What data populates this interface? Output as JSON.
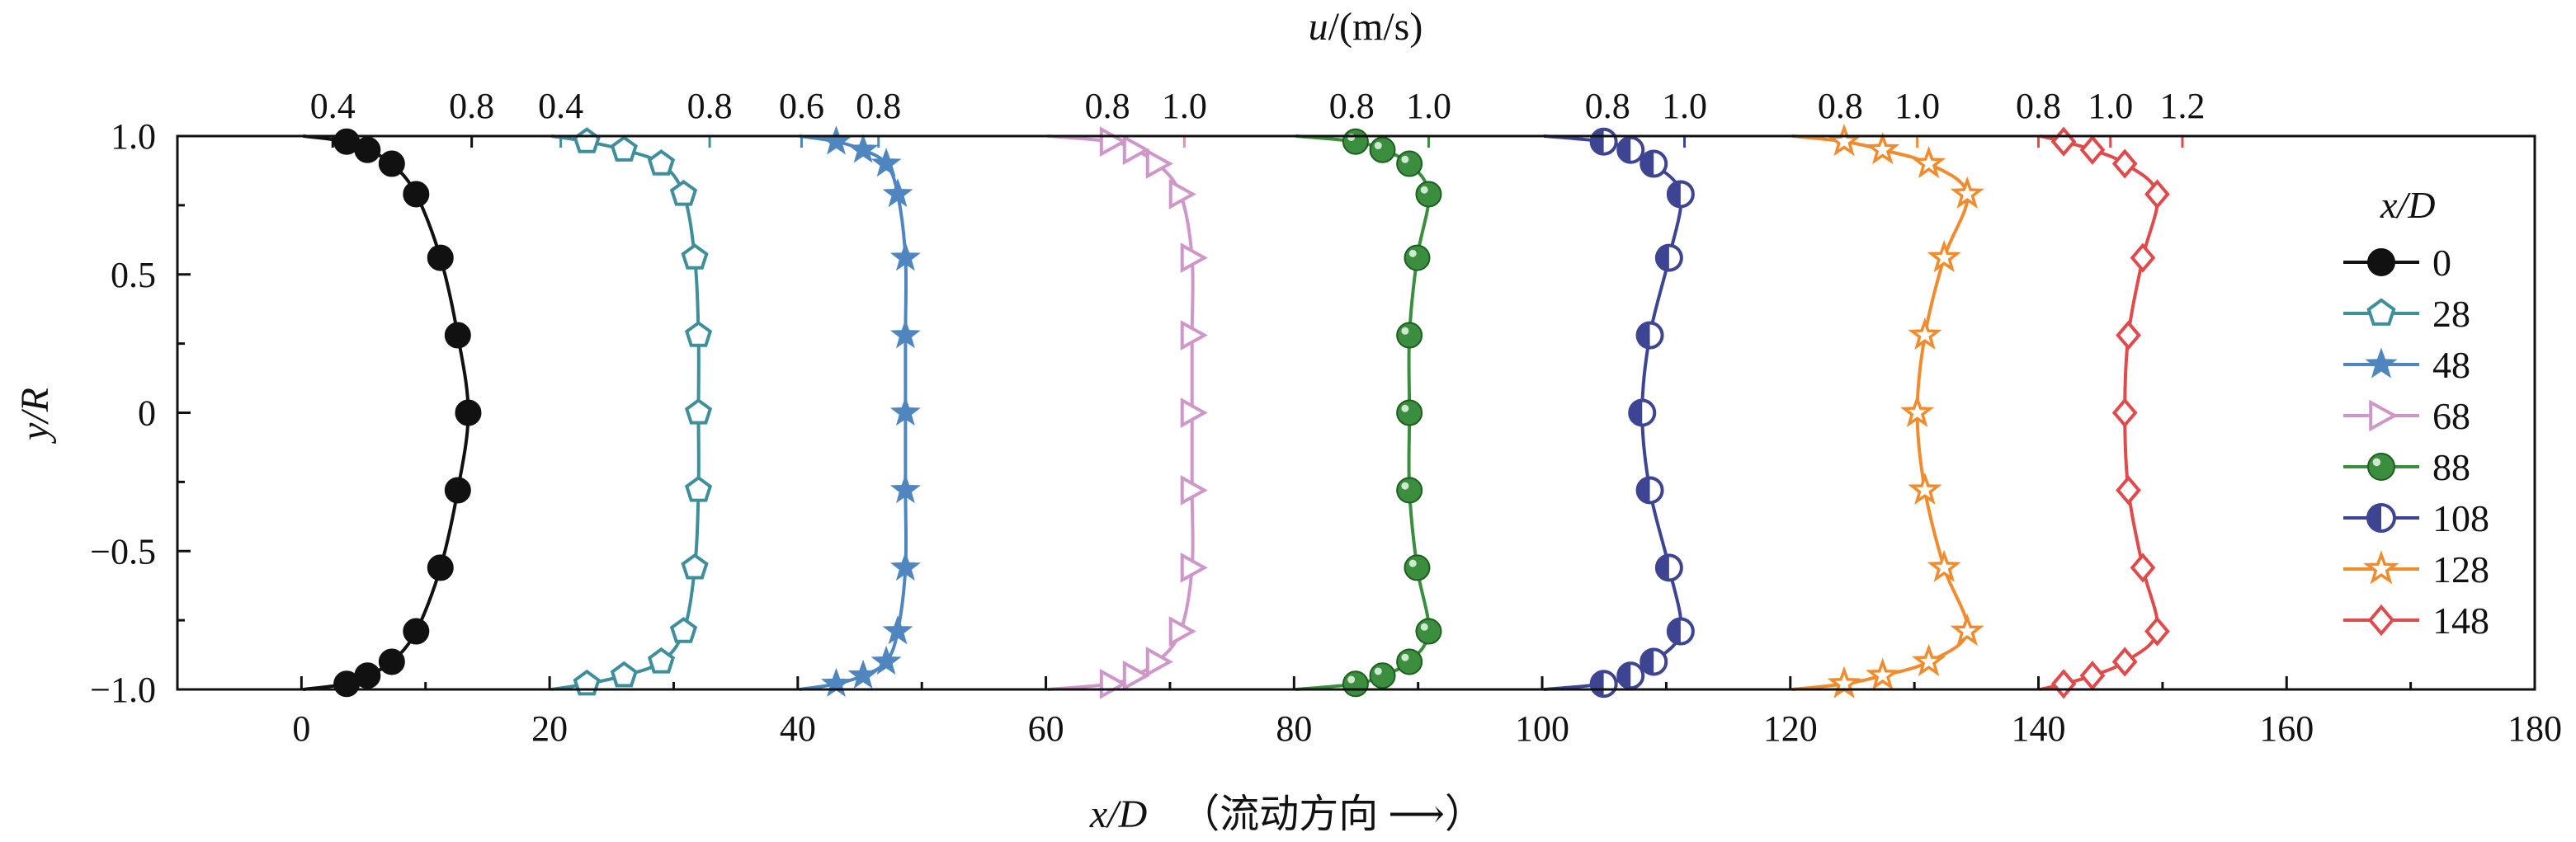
{
  "chart_data": {
    "type": "line",
    "title": "",
    "xlabel": "x/D",
    "xlabel_note": "（流动方向 ⟶）",
    "ylabel": "y/R",
    "top_axis_label": "u/(m/s)",
    "xlim": [
      -10,
      180
    ],
    "ylim": [
      -1.0,
      1.0
    ],
    "x_ticks": [
      "0",
      "20",
      "40",
      "60",
      "80",
      "100",
      "120",
      "140",
      "160",
      "180"
    ],
    "y_ticks": [
      "1.0",
      "0.5",
      "0",
      "−0.5",
      "−1.0"
    ],
    "legend_title": "x/D",
    "legend_position": "right",
    "grid": false,
    "y_points": [
      0.98,
      0.95,
      0.9,
      0.79,
      0.56,
      0.28,
      0.0,
      -0.28,
      -0.56,
      -0.79,
      -0.9,
      -0.95,
      -0.98
    ],
    "series": [
      {
        "name": "0",
        "x_offset": 0,
        "color": "#111111",
        "marker": "circle-filled",
        "top_ticks": [
          {
            "label": "0.4",
            "value": 0.4
          },
          {
            "label": "0.8",
            "value": 0.8
          }
        ],
        "u_values": [
          0.44,
          0.5,
          0.57,
          0.64,
          0.71,
          0.76,
          0.79,
          0.76,
          0.71,
          0.64,
          0.57,
          0.5,
          0.44
        ]
      },
      {
        "name": "28",
        "x_offset": 20,
        "color": "#3f8e9b",
        "marker": "pentagon-open",
        "top_ticks": [
          {
            "label": "0.4",
            "value": 0.4
          },
          {
            "label": "0.8",
            "value": 0.8
          }
        ],
        "u_values": [
          0.47,
          0.57,
          0.67,
          0.73,
          0.76,
          0.77,
          0.77,
          0.77,
          0.76,
          0.73,
          0.67,
          0.57,
          0.47
        ]
      },
      {
        "name": "48",
        "x_offset": 40,
        "color": "#4f86c0",
        "marker": "star",
        "top_ticks": [
          {
            "label": "0.6",
            "value": 0.6
          },
          {
            "label": "0.8",
            "value": 0.8
          }
        ],
        "u_values": [
          0.69,
          0.76,
          0.82,
          0.85,
          0.87,
          0.87,
          0.87,
          0.87,
          0.87,
          0.85,
          0.82,
          0.76,
          0.69
        ]
      },
      {
        "name": "68",
        "x_offset": 60,
        "color": "#cf97c9",
        "marker": "triangle-right-open",
        "top_ticks": [
          {
            "label": "0.8",
            "value": 0.8
          },
          {
            "label": "1.0",
            "value": 1.0
          }
        ],
        "u_values": [
          0.81,
          0.87,
          0.93,
          0.99,
          1.02,
          1.02,
          1.02,
          1.02,
          1.02,
          0.99,
          0.93,
          0.87,
          0.81
        ]
      },
      {
        "name": "88",
        "x_offset": 80,
        "color": "#3a8e3e",
        "marker": "sphere",
        "top_ticks": [
          {
            "label": "0.8",
            "value": 0.8
          },
          {
            "label": "1.0",
            "value": 1.0
          }
        ],
        "u_values": [
          0.81,
          0.88,
          0.95,
          1.0,
          0.97,
          0.95,
          0.95,
          0.95,
          0.97,
          1.0,
          0.95,
          0.88,
          0.81
        ]
      },
      {
        "name": "108",
        "x_offset": 100,
        "color": "#3d4593",
        "marker": "circle-half",
        "top_ticks": [
          {
            "label": "0.8",
            "value": 0.8
          },
          {
            "label": "1.0",
            "value": 1.0
          }
        ],
        "u_values": [
          0.79,
          0.86,
          0.92,
          0.99,
          0.96,
          0.91,
          0.89,
          0.91,
          0.96,
          0.99,
          0.92,
          0.86,
          0.79
        ]
      },
      {
        "name": "128",
        "x_offset": 120,
        "color": "#f08c2e",
        "marker": "star-open",
        "top_ticks": [
          {
            "label": "0.8",
            "value": 0.8
          },
          {
            "label": "1.0",
            "value": 1.0
          }
        ],
        "u_values": [
          0.81,
          0.91,
          1.03,
          1.13,
          1.07,
          1.02,
          1.0,
          1.02,
          1.07,
          1.13,
          1.03,
          0.91,
          0.81
        ]
      },
      {
        "name": "148",
        "x_offset": 140,
        "color": "#e04a4a",
        "marker": "diamond-open",
        "top_ticks": [
          {
            "label": "0.8",
            "value": 0.8
          },
          {
            "label": "1.0",
            "value": 1.0
          },
          {
            "label": "1.2",
            "value": 1.2
          }
        ],
        "u_values": [
          0.87,
          0.95,
          1.04,
          1.13,
          1.09,
          1.05,
          1.04,
          1.05,
          1.09,
          1.13,
          1.04,
          0.95,
          0.87
        ]
      }
    ]
  }
}
